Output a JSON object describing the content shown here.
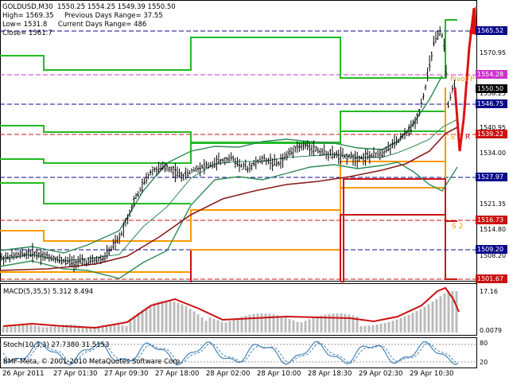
{
  "header": {
    "symbol_line": "GOLDUSD,M30  1550.25 1554.25 1549.39 1550.50",
    "line2": "High= 1569.35     Previous Days Range= 37.55",
    "line3": "Low= 1531.8     Current Days Range= 486",
    "line4": "Close= 1561.7"
  },
  "price_axis": {
    "ticks": [
      "1570.95",
      "1558.25",
      "1540.95",
      "1534.00",
      "1521.35",
      "1514.80",
      "1508.20"
    ],
    "levels": [
      {
        "label": "1565.52",
        "bg": "#0b0b8c"
      },
      {
        "label": "1554.28",
        "bg": "#cc33cc"
      },
      {
        "label": "1550.50",
        "bg": "#000000"
      },
      {
        "label": "1546.75",
        "bg": "#0b0b8c"
      },
      {
        "label": "1539.22",
        "bg": "#cc1111"
      },
      {
        "label": "1527.97",
        "bg": "#0b0b8c"
      },
      {
        "label": "1516.73",
        "bg": "#cc1111"
      },
      {
        "label": "1509.20",
        "bg": "#0b0b8c"
      },
      {
        "label": "1501.67",
        "bg": "#cc1111"
      }
    ]
  },
  "pivot_labels": {
    "s1": "S",
    "s2": "S 2",
    "r": "R",
    "pivot": "Pivot P"
  },
  "macd": {
    "label": "MACD(5,35,5) 5.312 8.494",
    "scale_top": "17.16",
    "scale_bottom": "0.0079"
  },
  "stoch": {
    "label": "Stoch(10,3,3) 27.7380 31.5153",
    "scale_top": "80",
    "scale_bottom": "20"
  },
  "watermark": "BMF-Meta, © 2001-2010 MetaQuotes Software Corp.",
  "time_axis": [
    "26 Apr 2011",
    "27 Apr 01:30",
    "27 Apr 09:30",
    "27 Apr 18:00",
    "28 Apr 02:00",
    "28 Apr 10:00",
    "28 Apr 18:30",
    "29 Apr 02:30",
    "29 Apr 10:30"
  ],
  "colors": {
    "bollinger": "#2e8b57",
    "ma": "#8b1a1a",
    "resistance": "#22bb22",
    "support": "#cc1111",
    "pivot": "#ff9900",
    "macd_signal": "#cc1111",
    "macd_hist": "#bbbbbb",
    "stoch_main": "#4682b4",
    "stoch_signal": "#4682b4"
  }
}
